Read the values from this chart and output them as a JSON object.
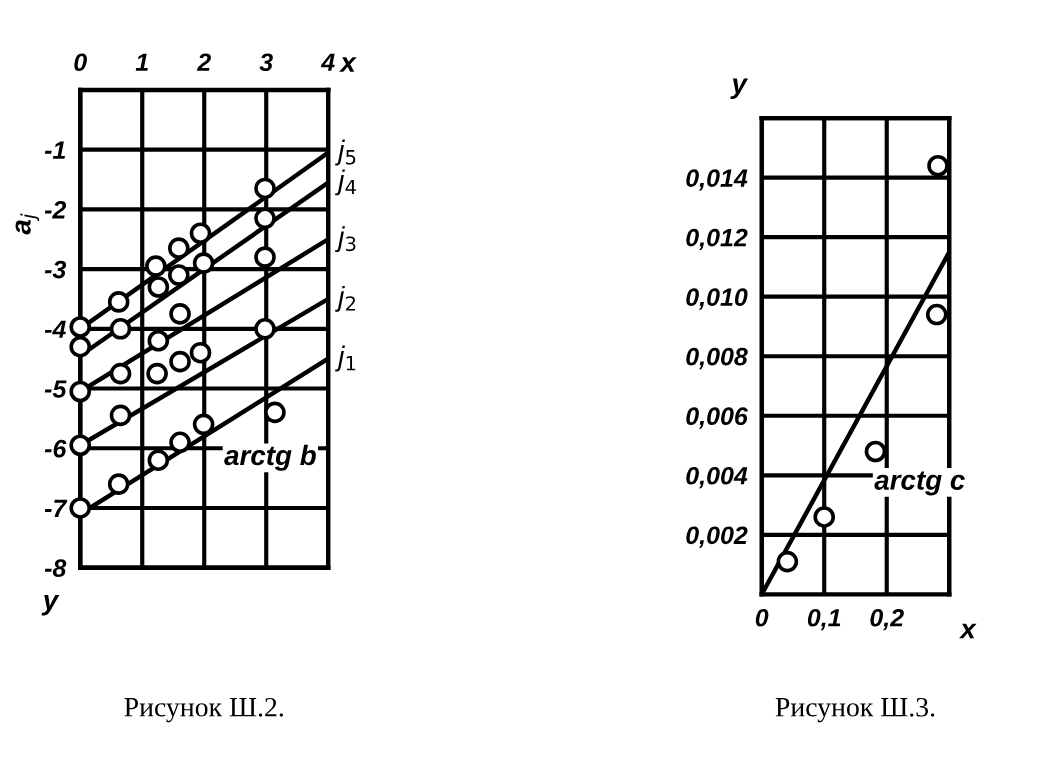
{
  "chart_data": [
    {
      "type": "scatter",
      "xlabel": "x",
      "ylabel": "y",
      "xlim": [
        0,
        4
      ],
      "ylim": [
        -8,
        0
      ],
      "xticks": [
        0,
        1,
        2,
        3,
        4
      ],
      "yticks": [
        {
          "value": 0,
          "label": null
        },
        -1,
        -2,
        -3,
        -4,
        -5,
        -6,
        -7,
        -8
      ],
      "grid": true,
      "annotations": [
        "a$_{j}$",
        "arctg b",
        "Рисунок Ш.2."
      ],
      "series": [
        {
          "color": "#000000",
          "marker": "circle",
          "x": [
            0,
            0.62,
            1.22,
            1.59,
            1.94,
            2.98,
            0,
            0.65,
            1.26,
            1.59,
            1.99,
            2.98,
            0,
            0.65,
            1.24,
            1.61,
            1.94,
            1.61,
            1.26,
            2.98,
            0,
            0.65,
            1.61,
            1.99,
            2.98,
            0,
            0.62,
            1.26,
            3.14
          ],
          "values": [
            -3.97,
            -3.55,
            -2.95,
            -2.65,
            -2.4,
            -1.65,
            -4.3,
            -4.0,
            -3.3,
            -3.1,
            -2.9,
            -2.15,
            -5.05,
            -4.75,
            -4.75,
            -4.55,
            -4.4,
            -3.75,
            -4.2,
            -2.8,
            -5.95,
            -5.45,
            -5.9,
            -5.6,
            -4.0,
            -7.0,
            -6.6,
            -6.2,
            -5.4
          ]
        },
        {
          "type": "line",
          "name": "j$_{5}$",
          "color": "#000000",
          "x": [
            0,
            4
          ],
          "values": [
            -4.0,
            -1.05
          ]
        },
        {
          "type": "line",
          "name": "j$_{4}$",
          "color": "#000000",
          "x": [
            0,
            4
          ],
          "values": [
            -4.45,
            -1.55
          ]
        },
        {
          "type": "line",
          "name": "j$_{3}$",
          "color": "#000000",
          "x": [
            0,
            4
          ],
          "values": [
            -5.05,
            -2.5
          ]
        },
        {
          "type": "line",
          "name": "j$_{2}$",
          "color": "#000000",
          "x": [
            0,
            4
          ],
          "values": [
            -5.95,
            -3.5
          ]
        },
        {
          "type": "line",
          "name": "j$_{1}$",
          "color": "#000000",
          "x": [
            0,
            4
          ],
          "values": [
            -7.1,
            -4.5
          ]
        }
      ]
    },
    {
      "type": "scatter",
      "xlabel": "x",
      "ylabel": "y",
      "xlim": [
        0,
        0.3
      ],
      "ylim": [
        0,
        0.016
      ],
      "xticks": [
        0,
        {
          "value": 0.1,
          "label": "0,1"
        },
        {
          "value": 0.2,
          "label": "0,2"
        },
        {
          "value": 0.3,
          "label": null
        }
      ],
      "yticks": [
        {
          "value": 0.002,
          "label": "0,002"
        },
        {
          "value": 0.004,
          "label": "0,004"
        },
        {
          "value": 0.006,
          "label": "0,006"
        },
        {
          "value": 0.008,
          "label": "0,008"
        },
        {
          "value": 0.01,
          "label": "0,010"
        },
        {
          "value": 0.012,
          "label": "0,012"
        },
        {
          "value": 0.014,
          "label": "0,014"
        },
        {
          "value": 0.016,
          "label": null
        }
      ],
      "grid": true,
      "annotations": [
        "arctg c",
        "Рисунок Ш.3."
      ],
      "series": [
        {
          "color": "#000000",
          "marker": "circle",
          "x": [
            0.041,
            0.1,
            0.182,
            0.28,
            0.282
          ],
          "values": [
            0.0011,
            0.0026,
            0.0048,
            0.0094,
            0.0144
          ]
        },
        {
          "type": "line",
          "color": "#000000",
          "x": [
            0,
            0.3
          ],
          "values": [
            0,
            0.0115
          ]
        }
      ]
    }
  ]
}
